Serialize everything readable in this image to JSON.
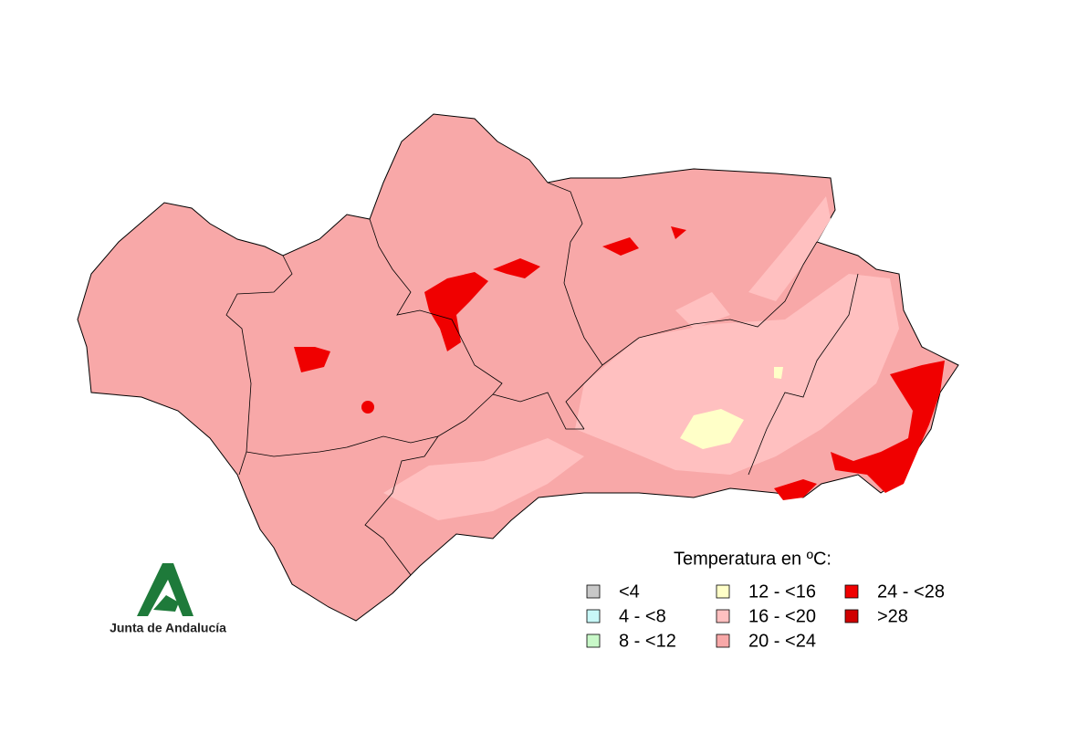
{
  "legend": {
    "title": "Temperatura en ºC:",
    "items": [
      {
        "label": "<4",
        "color": "#c8c8c8"
      },
      {
        "label": "4 - <8",
        "color": "#c8f8f8"
      },
      {
        "label": "8 - <12",
        "color": "#c8f8c8"
      },
      {
        "label": "12 - <16",
        "color": "#ffffc8"
      },
      {
        "label": "16 - <20",
        "color": "#ffc0c0"
      },
      {
        "label": "20 - <24",
        "color": "#f8a8a8"
      },
      {
        "label": "24 - <28",
        "color": "#f00000"
      },
      {
        "label": ">28",
        "color": "#d00000"
      }
    ]
  },
  "logo": {
    "text": "Junta de Andalucía"
  }
}
